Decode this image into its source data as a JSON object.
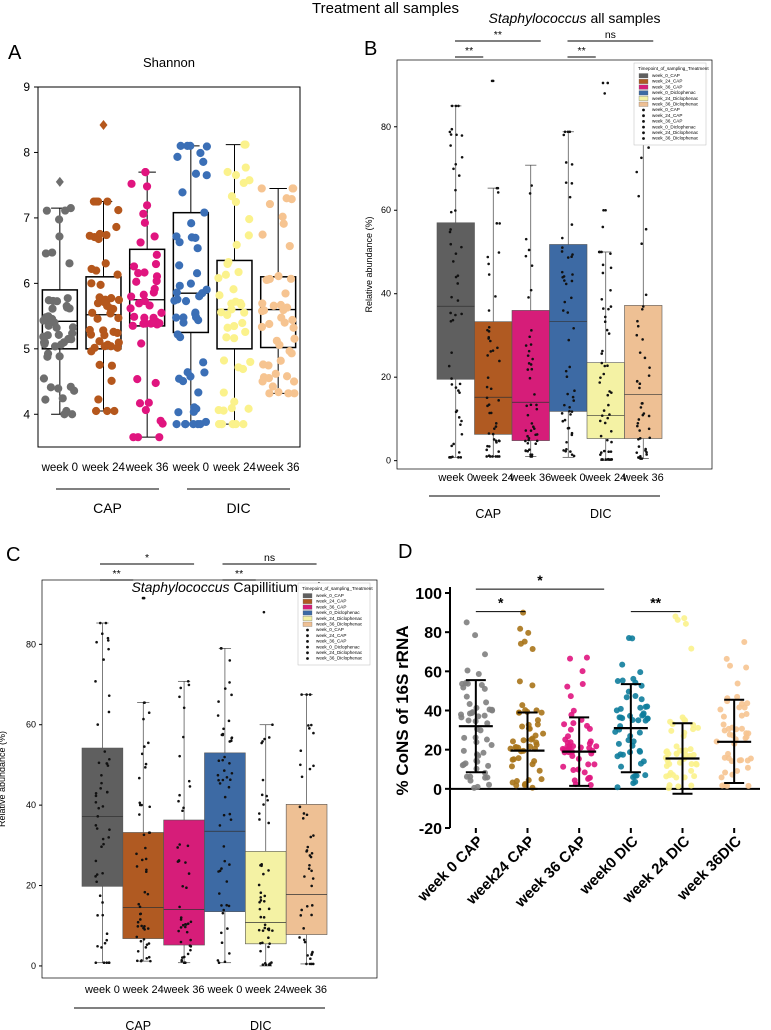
{
  "figure_title": "Treatment all samples",
  "chart_data": [
    {
      "panel": "A",
      "type": "box",
      "title": "Shannon",
      "xlabel": "",
      "ylabel": "",
      "ylim": [
        3.5,
        9
      ],
      "yticks": [
        4,
        5,
        6,
        7,
        8,
        9
      ],
      "categories": [
        "week 0",
        "week 24",
        "week 36",
        "week 0",
        "week 24",
        "week 36"
      ],
      "groups": [
        {
          "label": "CAP",
          "from": 0,
          "to": 2
        },
        {
          "label": "DIC",
          "from": 3,
          "to": 5
        }
      ],
      "series": [
        {
          "name": "week 0 CAP",
          "color": "#6e6e6e",
          "q1": 5.0,
          "median": 5.42,
          "q3": 5.9,
          "whisker_low": 4.0,
          "whisker_high": 7.15,
          "outliers": [
            7.55
          ],
          "n": 50
        },
        {
          "name": "week 24 CAP",
          "color": "#b5571c",
          "q1": 5.0,
          "median": 5.52,
          "q3": 6.1,
          "whisker_low": 4.05,
          "whisker_high": 7.25,
          "outliers": [
            8.42
          ],
          "n": 52
        },
        {
          "name": "week 36 CAP",
          "color": "#e0157f",
          "q1": 5.35,
          "median": 5.75,
          "q3": 6.52,
          "whisker_low": 3.65,
          "whisker_high": 7.7,
          "outliers": [],
          "n": 48
        },
        {
          "name": "week 0 DIC",
          "color": "#3b6fb6",
          "q1": 5.25,
          "median": 5.85,
          "q3": 7.08,
          "whisker_low": 3.85,
          "whisker_high": 8.1,
          "outliers": [],
          "n": 55
        },
        {
          "name": "week 24 DIC",
          "color": "#fbf28c",
          "q1": 5.0,
          "median": 5.6,
          "q3": 6.35,
          "whisker_low": 3.85,
          "whisker_high": 8.12,
          "outliers": [],
          "n": 50
        },
        {
          "name": "week 36 DIC",
          "color": "#f6c491",
          "q1": 5.02,
          "median": 5.6,
          "q3": 6.1,
          "whisker_low": 4.32,
          "whisker_high": 7.45,
          "outliers": [],
          "n": 48
        }
      ]
    },
    {
      "panel": "B",
      "type": "box",
      "title_italic": "Staphylococcus",
      "title_rest": " all samples",
      "ylabel": "Relative abundance (%)",
      "ylim": [
        -2,
        96
      ],
      "yticks": [
        0,
        20,
        40,
        60,
        80
      ],
      "categories": [
        "week 0",
        "week 24",
        "week 36",
        "week 0",
        "week 24",
        "week 36"
      ],
      "groups": [
        {
          "label": "CAP",
          "from": 0,
          "to": 2
        },
        {
          "label": "DIC",
          "from": 3,
          "to": 5
        }
      ],
      "legend_title": "Timepoint_of_sampling_Treatment",
      "legend": [
        "week_0_CAP",
        "week_24_CAP",
        "week_36_CAP",
        "week_0_Diclophenac",
        "week_24_Diclophenac",
        "week_36_Diclophenac",
        "week_0_CAP",
        "week_24_CAP",
        "week_36_CAP",
        "week_0_Diclophenac",
        "week_24_Diclophenac",
        "week_36_Diclophenac"
      ],
      "legend_placement": "top-right",
      "significance": [
        {
          "label": "**",
          "from": 0,
          "to": 1,
          "level": 0
        },
        {
          "label": "**",
          "from": 0,
          "to": 2,
          "level": 1
        },
        {
          "label": "**",
          "from": 3,
          "to": 4,
          "level": 0
        },
        {
          "label": "ns",
          "from": 3,
          "to": 5,
          "level": 1
        }
      ],
      "series": [
        {
          "name": "week_0_CAP",
          "color": "#5f5f5f",
          "q1": 19.5,
          "median": 37,
          "q3": 57,
          "whisker_low": 0.8,
          "whisker_high": 85,
          "outliers": [],
          "n": 55
        },
        {
          "name": "week_24_CAP",
          "color": "#b05a22",
          "q1": 6.3,
          "median": 15.2,
          "q3": 33.3,
          "whisker_low": 1.0,
          "whisker_high": 65.3,
          "outliers": [
            91,
            91
          ],
          "n": 52
        },
        {
          "name": "week_36_CAP",
          "color": "#d61d79",
          "q1": 4.8,
          "median": 14,
          "q3": 36,
          "whisker_low": 1.0,
          "whisker_high": 70.8,
          "outliers": [],
          "n": 48
        },
        {
          "name": "week_0_Diclophenac",
          "color": "#3d6aa4",
          "q1": 11.8,
          "median": 33.3,
          "q3": 51.8,
          "whisker_low": 0.8,
          "whisker_high": 78.8,
          "outliers": [],
          "n": 55
        },
        {
          "name": "week_24_Diclophenac",
          "color": "#f4f2a4",
          "q1": 5.3,
          "median": 10.8,
          "q3": 23.5,
          "whisker_low": 0.0,
          "whisker_high": 50,
          "outliers": [
            90.5,
            90.5,
            88,
            60,
            60,
            56
          ],
          "n": 50
        },
        {
          "name": "week_36_Diclophenac",
          "color": "#eec094",
          "q1": 5.3,
          "median": 15.8,
          "q3": 37.2,
          "whisker_low": 0.5,
          "whisker_high": 83,
          "outliers": [],
          "n": 48
        }
      ]
    },
    {
      "panel": "C",
      "type": "box",
      "title_italic": "Staphylococcus",
      "title_rest": " Capillitium only",
      "ylabel": "Relative abundance (%)",
      "ylim": [
        -3,
        96
      ],
      "yticks": [
        0,
        20,
        40,
        60,
        80
      ],
      "categories": [
        "week 0",
        "week 24",
        "week 36",
        "week 0",
        "week 24",
        "week 36"
      ],
      "groups": [
        {
          "label": "CAP",
          "from": 0,
          "to": 2
        },
        {
          "label": "DIC",
          "from": 3,
          "to": 5
        }
      ],
      "legend_title": "Timepoint_of_sampling_Treatment",
      "legend": [
        "week_0_CAP",
        "week_24_CAP",
        "week_36_CAP",
        "week_0_Diclophenac",
        "week_24_Diclophenac",
        "week_36_Diclophenac",
        "week_0_CAP",
        "week_24_CAP",
        "week_36_CAP",
        "week_0_Diclophenac",
        "week_24_Diclophenac",
        "week_36_Diclophenac"
      ],
      "legend_placement": "top-right",
      "significance": [
        {
          "label": "**",
          "from": 0,
          "to": 1,
          "level": 0
        },
        {
          "label": "*",
          "from": 0,
          "to": 2,
          "level": 1
        },
        {
          "label": "**",
          "from": 3,
          "to": 4,
          "level": 0
        },
        {
          "label": "ns",
          "from": 3,
          "to": 5,
          "level": 1
        }
      ],
      "series": [
        {
          "name": "week_0_CAP",
          "color": "#5f5f5f",
          "q1": 19.8,
          "median": 37.2,
          "q3": 54.2,
          "whisker_low": 0.8,
          "whisker_high": 85.3,
          "outliers": [],
          "n": 55
        },
        {
          "name": "week_24_CAP",
          "color": "#b05a22",
          "q1": 6.8,
          "median": 14.5,
          "q3": 33.2,
          "whisker_low": 1.2,
          "whisker_high": 65.5,
          "outliers": [
            91.5,
            91.5
          ],
          "n": 52
        },
        {
          "name": "week_36_CAP",
          "color": "#d61d79",
          "q1": 5.2,
          "median": 14,
          "q3": 36.3,
          "whisker_low": 0.8,
          "whisker_high": 70.8,
          "outliers": [],
          "n": 48
        },
        {
          "name": "week_0_Diclophenac",
          "color": "#3d6aa4",
          "q1": 13.5,
          "median": 33.5,
          "q3": 53,
          "whisker_low": 0.8,
          "whisker_high": 79,
          "outliers": [],
          "n": 55
        },
        {
          "name": "week_24_Diclophenac",
          "color": "#f4f2a4",
          "q1": 5.5,
          "median": 10.8,
          "q3": 28.5,
          "whisker_low": 0.0,
          "whisker_high": 60,
          "outliers": [
            88
          ],
          "n": 50
        },
        {
          "name": "week_36_Diclophenac",
          "color": "#eec094",
          "q1": 7.8,
          "median": 17.8,
          "q3": 40.2,
          "whisker_low": 0.5,
          "whisker_high": 67.5,
          "outliers": [],
          "n": 48
        }
      ]
    },
    {
      "panel": "D",
      "type": "scatter",
      "title": "",
      "ylabel": "% CoNS of 16S rRNA",
      "ylim": [
        -20,
        100
      ],
      "yticks": [
        -20,
        0,
        20,
        40,
        60,
        80,
        100
      ],
      "categories": [
        "week 0 CAP",
        "week24 CAP",
        "week 36 CAP",
        "week0 DIC",
        "week 24 DIC",
        "week 36DIC"
      ],
      "significance": [
        {
          "label": "*",
          "from": 0,
          "to": 1,
          "level": 0
        },
        {
          "label": "*",
          "from": 0,
          "to": 2,
          "level": 1
        },
        {
          "label": "**",
          "from": 3,
          "to": 4,
          "level": 0
        }
      ],
      "series": [
        {
          "name": "week 0 CAP",
          "color": "#808080",
          "mean": 32,
          "sd_low": 8.5,
          "sd_high": 55.5,
          "max": 85,
          "min": 0,
          "n": 55
        },
        {
          "name": "week24 CAP",
          "color": "#a8741a",
          "mean": 19.5,
          "sd_low": 0,
          "sd_high": 39,
          "max": 90,
          "min": 0,
          "n": 52
        },
        {
          "name": "week 36 CAP",
          "color": "#e0157f",
          "mean": 19,
          "sd_low": 1.5,
          "sd_high": 36.5,
          "max": 67,
          "min": 1,
          "n": 48
        },
        {
          "name": "week0 DIC",
          "color": "#0f7d9c",
          "mean": 31,
          "sd_low": 8.5,
          "sd_high": 53.5,
          "max": 77,
          "min": 0,
          "n": 55
        },
        {
          "name": "week 24 DIC",
          "color": "#fbf28c",
          "mean": 15.5,
          "sd_low": -2.5,
          "sd_high": 33.5,
          "max": 88,
          "min": 0,
          "n": 50
        },
        {
          "name": "week 36DIC",
          "color": "#f6c491",
          "mean": 24,
          "sd_low": 3,
          "sd_high": 45.5,
          "max": 75,
          "min": 1,
          "n": 48
        }
      ]
    }
  ],
  "panel_letters": [
    "A",
    "B",
    "C",
    "D"
  ]
}
